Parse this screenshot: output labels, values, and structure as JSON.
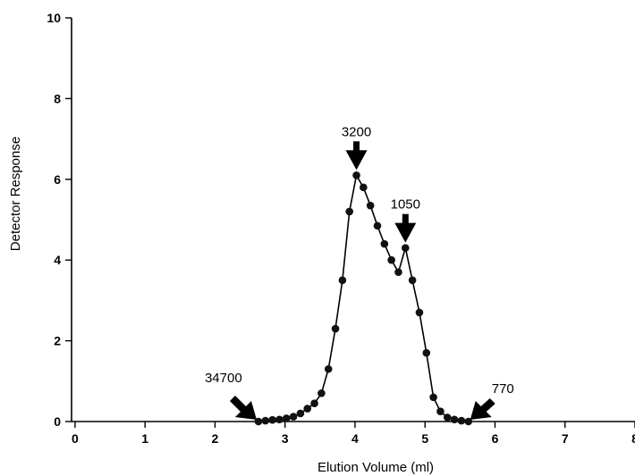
{
  "chart_data": {
    "type": "line",
    "xlabel": "Elution Volume (ml)",
    "ylabel": "Detector Response",
    "xlim": [
      -0.05,
      8.0
    ],
    "ylim": [
      0,
      10
    ],
    "xticks": [
      "0",
      "1",
      "2",
      "3",
      "4",
      "5",
      "6",
      "7",
      "8"
    ],
    "yticks": [
      "0",
      "2",
      "4",
      "6",
      "8",
      "10"
    ],
    "grid": false,
    "legend": "none",
    "line_color": "#000000",
    "marker": "filled-circle",
    "series": [
      {
        "x": [
          2.62,
          2.72,
          2.82,
          2.92,
          3.02,
          3.12,
          3.22,
          3.32,
          3.42,
          3.52,
          3.62,
          3.72,
          3.82,
          3.92,
          4.02,
          4.12,
          4.22,
          4.32,
          4.42,
          4.52,
          4.62,
          4.72,
          4.82,
          4.92,
          5.02,
          5.12,
          5.22,
          5.32,
          5.42,
          5.52,
          5.62
        ],
        "y": [
          0.0,
          0.02,
          0.04,
          0.05,
          0.08,
          0.12,
          0.2,
          0.32,
          0.45,
          0.7,
          1.3,
          2.3,
          3.5,
          5.2,
          6.1,
          5.8,
          5.35,
          4.85,
          4.4,
          4.0,
          3.7,
          4.3,
          3.5,
          2.7,
          1.7,
          0.6,
          0.25,
          0.1,
          0.05,
          0.02,
          0.0
        ]
      }
    ],
    "annotations": [
      {
        "label": "34700",
        "x": 2.62,
        "y": 0.0,
        "arrow": "diagonal-down-right"
      },
      {
        "label": "3200",
        "x": 4.02,
        "y": 6.1,
        "arrow": "down"
      },
      {
        "label": "1050",
        "x": 4.72,
        "y": 4.3,
        "arrow": "down"
      },
      {
        "label": "770",
        "x": 5.62,
        "y": 0.0,
        "arrow": "diagonal-down-left"
      }
    ]
  }
}
